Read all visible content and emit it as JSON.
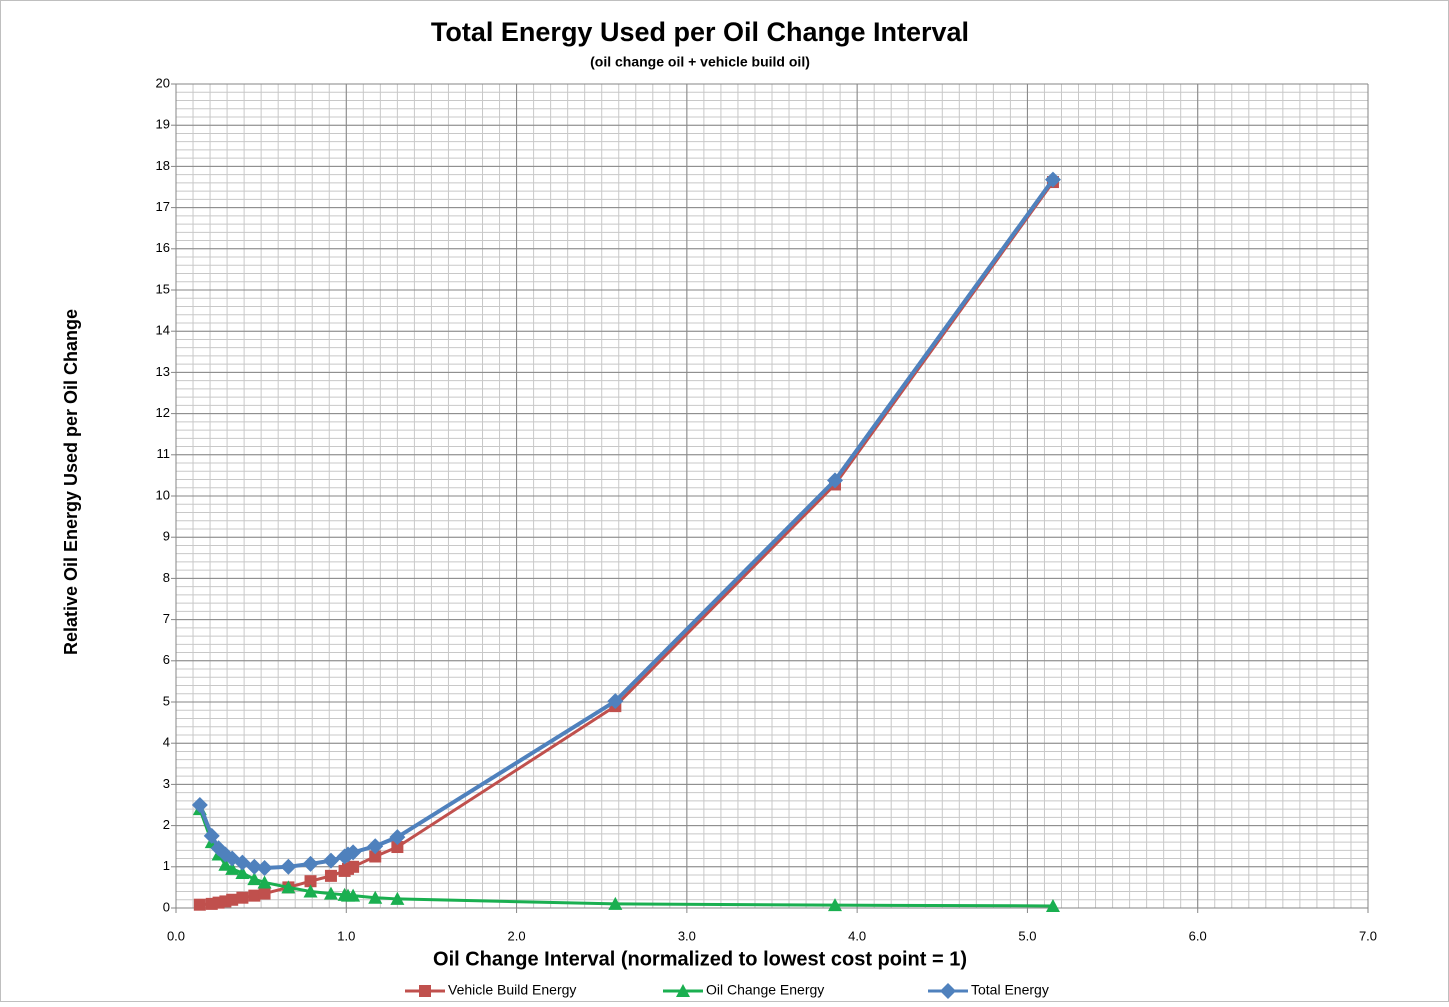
{
  "chart_data": {
    "type": "line",
    "title": "Total Energy Used per Oil Change Interval",
    "subtitle": "(oil change oil + vehicle build oil)",
    "x_label": "Oil Change Interval (normalized to lowest cost point = 1)",
    "y_label": "Relative Oil Energy Used per Oil Change",
    "x": [
      0.14,
      0.21,
      0.25,
      0.29,
      0.33,
      0.39,
      0.46,
      0.52,
      0.66,
      0.79,
      0.91,
      0.99,
      1.01,
      1.04,
      1.17,
      1.3,
      2.58,
      3.87,
      5.15
    ],
    "series": [
      {
        "name": "Vehicle Build Energy",
        "color": "#c0504d",
        "marker": "square",
        "values": [
          0.08,
          0.1,
          0.13,
          0.16,
          0.2,
          0.25,
          0.3,
          0.35,
          0.5,
          0.65,
          0.78,
          0.9,
          0.95,
          1.0,
          1.25,
          1.48,
          4.9,
          10.28,
          17.62
        ]
      },
      {
        "name": "Oil Change Energy",
        "color": "#1aaf50",
        "marker": "triangle",
        "values": [
          2.4,
          1.6,
          1.3,
          1.05,
          0.95,
          0.85,
          0.7,
          0.62,
          0.5,
          0.4,
          0.35,
          0.32,
          0.3,
          0.3,
          0.25,
          0.22,
          0.1,
          0.07,
          0.05
        ]
      },
      {
        "name": "Total Energy",
        "color": "#4f81bd",
        "marker": "diamond",
        "values": [
          2.5,
          1.75,
          1.45,
          1.3,
          1.2,
          1.1,
          1.0,
          0.97,
          1.0,
          1.07,
          1.15,
          1.25,
          1.3,
          1.35,
          1.5,
          1.72,
          5.02,
          10.38,
          17.68
        ]
      }
    ],
    "xlim": [
      0,
      7
    ],
    "xticks": [
      {
        "value": 0,
        "label": "0.0"
      },
      {
        "value": 1,
        "label": "1.0"
      },
      {
        "value": 2,
        "label": "2.0"
      },
      {
        "value": 3,
        "label": "3.0"
      },
      {
        "value": 4,
        "label": "4.0"
      },
      {
        "value": 5,
        "label": "5.0"
      },
      {
        "value": 6,
        "label": "6.0"
      },
      {
        "value": 7,
        "label": "7.0"
      }
    ],
    "ylim": [
      0,
      20
    ],
    "yticks": [
      0,
      1,
      2,
      3,
      4,
      5,
      6,
      7,
      8,
      9,
      10,
      11,
      12,
      13,
      14,
      15,
      16,
      17,
      18,
      19,
      20
    ],
    "grid": true,
    "minor_grid": {
      "x": 0.1,
      "y": 0.2
    },
    "legend": "bottom"
  }
}
